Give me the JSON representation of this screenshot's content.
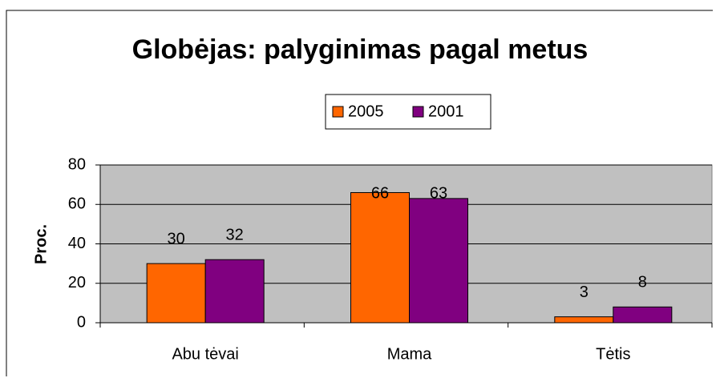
{
  "chart_data": {
    "type": "bar",
    "title": "Globėjas: palyginimas pagal metus",
    "y_label": "Proc.",
    "categories": [
      "Abu tėvai",
      "Mama",
      "Tėtis"
    ],
    "series": [
      {
        "name": "2005",
        "color": "#ff6600",
        "values": [
          30,
          66,
          3
        ]
      },
      {
        "name": "2001",
        "color": "#800080",
        "values": [
          32,
          63,
          8
        ]
      }
    ],
    "ylim": [
      0,
      80
    ],
    "yticks": [
      0,
      20,
      40,
      60,
      80
    ],
    "grid": true,
    "legend": "top"
  }
}
